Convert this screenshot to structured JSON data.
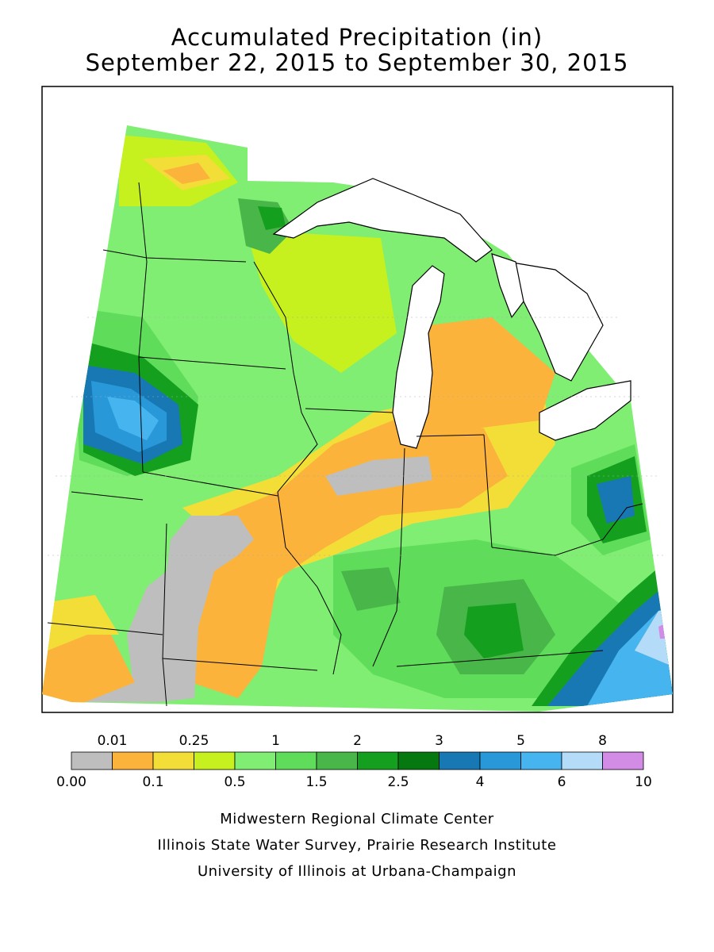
{
  "title": {
    "line1": "Accumulated Precipitation (in)",
    "line2": "September 22, 2015 to September 30, 2015"
  },
  "legend": {
    "upper_labels": [
      "0.01",
      "0.25",
      "1",
      "2",
      "3",
      "5",
      "8"
    ],
    "lower_labels": [
      "0.00",
      "0.1",
      "0.5",
      "1.5",
      "2.5",
      "4",
      "6",
      "10"
    ],
    "colors": [
      "#bebebe",
      "#fbb33c",
      "#f3de38",
      "#c6f01e",
      "#80ee72",
      "#5fdc5a",
      "#48b648",
      "#14a01e",
      "#05780f",
      "#1878b4",
      "#2898d8",
      "#46b4ee",
      "#b4dcf8",
      "#d28ce6"
    ]
  },
  "credits": {
    "line1": "Midwestern Regional Climate Center",
    "line2": "Illinois State Water Survey, Prairie Research Institute",
    "line3": "University of Illinois at Urbana-Champaign"
  }
}
